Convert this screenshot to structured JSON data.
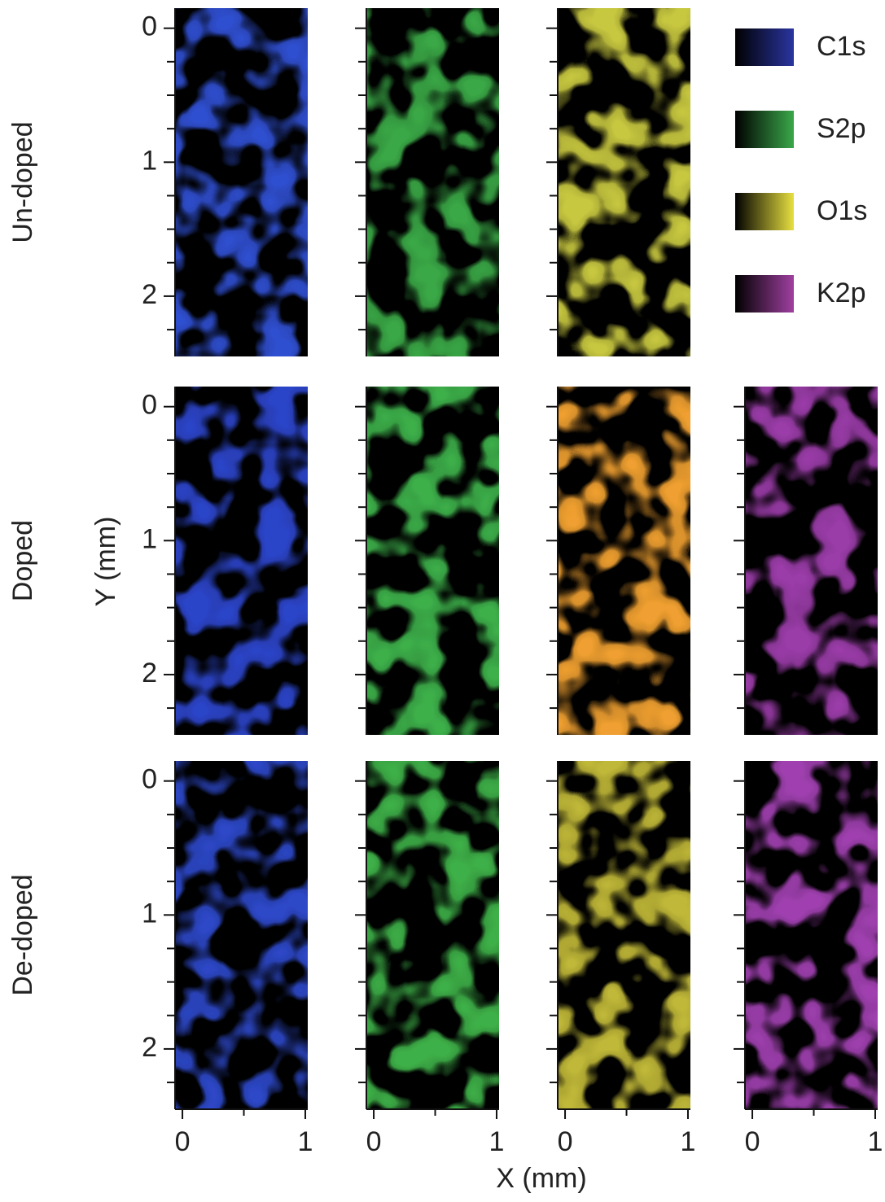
{
  "chart_data": {
    "type": "map-grid",
    "xlabel": "X (mm)",
    "ylabel": "Y (mm)",
    "rows": [
      {
        "label": "Un-doped",
        "panels": [
          {
            "color": "#2f4fd0"
          },
          {
            "color": "#3aa846"
          },
          {
            "color": "#c8c840"
          }
        ]
      },
      {
        "label": "Doped",
        "panels": [
          {
            "color": "#2b44c8"
          },
          {
            "color": "#3db04a"
          },
          {
            "color": "#f0a030"
          },
          {
            "color": "#9a3ca8"
          }
        ]
      },
      {
        "label": "De-doped",
        "panels": [
          {
            "color": "#2d48c8"
          },
          {
            "color": "#3eb048"
          },
          {
            "color": "#c0b838"
          },
          {
            "color": "#a040b0"
          }
        ]
      }
    ],
    "series": [
      {
        "name": "C1s",
        "color": "#2a35a0"
      },
      {
        "name": "S2p",
        "color": "#3aa84a"
      },
      {
        "name": "O1s",
        "color": "#e8e040"
      },
      {
        "name": "K2p",
        "color": "#a040a0"
      }
    ],
    "xlim": [
      -0.06,
      1.02
    ],
    "xticks": [
      0,
      1
    ],
    "xminorticks": [
      0.5
    ],
    "ylim": [
      -0.15,
      2.45
    ],
    "yticks": [
      0,
      1,
      2
    ],
    "yminorticks": [
      0.25,
      0.5,
      0.75,
      1.25,
      1.5,
      1.75,
      2.25
    ]
  }
}
